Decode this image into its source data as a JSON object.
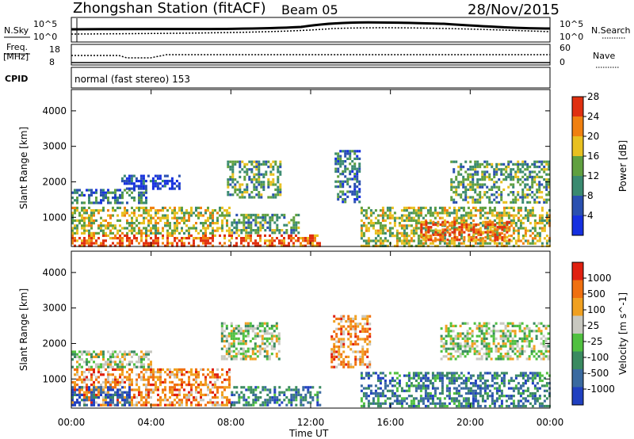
{
  "header": {
    "station": "Zhongshan Station (fitACF)",
    "beam": "Beam 05",
    "date": "28/Nov/2015"
  },
  "summary_panels": {
    "nsky_label": "N.Sky",
    "nsearch_label": "N.Search",
    "freq_label_1": "Freq.",
    "freq_label_2": "[MHz]",
    "nave_label": "Nave",
    "cpid_label": "CPID",
    "nsky_ticks": [
      "10^5",
      "10^0"
    ],
    "nsearch_ticks": [
      "10^5",
      "10^0"
    ],
    "freq_ticks": [
      "18",
      "8"
    ],
    "nave_ticks": [
      "60",
      "0"
    ],
    "cpid_text": "normal (fast stereo) 153"
  },
  "chart_data": [
    {
      "type": "heatmap",
      "quantity": "Power",
      "ylabel": "Slant Range [km]",
      "xlabel": "Time UT",
      "colorbar_label": "Power [dB]",
      "colorbar_ticks": [
        "4",
        "8",
        "12",
        "16",
        "20",
        "24",
        "28"
      ],
      "colors": [
        "#1530e0",
        "#2a50b0",
        "#3a8a70",
        "#60a040",
        "#e8c020",
        "#f08010",
        "#e03010"
      ],
      "x_ticks": [
        "00:00",
        "04:00",
        "08:00",
        "12:00",
        "16:00",
        "20:00",
        "00:00"
      ],
      "y_ticks": [
        "1000",
        "2000",
        "3000",
        "4000"
      ],
      "x_range_hours": [
        0,
        24
      ],
      "y_range_km": [
        180,
        4600
      ],
      "echo_regions": [
        {
          "t0": 0.0,
          "t1": 3.8,
          "r0": 1350,
          "r1": 1800,
          "level": 2
        },
        {
          "t0": 0.0,
          "t1": 12.5,
          "r0": 180,
          "r1": 520,
          "level": 6
        },
        {
          "t0": 0.0,
          "t1": 8.0,
          "r0": 500,
          "r1": 1300,
          "level": 4
        },
        {
          "t0": 8.0,
          "t1": 11.5,
          "r0": 500,
          "r1": 1100,
          "level": 3
        },
        {
          "t0": 2.5,
          "t1": 5.5,
          "r0": 1800,
          "r1": 2200,
          "level": 1
        },
        {
          "t0": 7.8,
          "t1": 10.5,
          "r0": 1500,
          "r1": 2600,
          "level": 3
        },
        {
          "t0": 13.2,
          "t1": 14.5,
          "r0": 1400,
          "r1": 2900,
          "level": 2
        },
        {
          "t0": 14.5,
          "t1": 24.0,
          "r0": 180,
          "r1": 1300,
          "level": 4
        },
        {
          "t0": 17.5,
          "t1": 22.0,
          "r0": 300,
          "r1": 900,
          "level": 6
        },
        {
          "t0": 19.0,
          "t1": 24.0,
          "r0": 1400,
          "r1": 2600,
          "level": 3
        }
      ]
    },
    {
      "type": "heatmap",
      "quantity": "Velocity",
      "ylabel": "Slant Range [km]",
      "xlabel": "Time UT",
      "colorbar_label": "Velocity [m s^-1]",
      "colorbar_ticks": [
        "1000",
        "500",
        "100",
        "25",
        "-25",
        "-100",
        "-500",
        "-1000"
      ],
      "colors": [
        "#2040c0",
        "#3a6aa0",
        "#3a8a60",
        "#50c040",
        "#c8c8c0",
        "#f0a020",
        "#f07010",
        "#e02010"
      ],
      "x_ticks": [
        "00:00",
        "04:00",
        "08:00",
        "12:00",
        "16:00",
        "20:00",
        "00:00"
      ],
      "y_ticks": [
        "1000",
        "2000",
        "3000",
        "4000"
      ],
      "x_range_hours": [
        0,
        24
      ],
      "y_range_km": [
        180,
        4600
      ],
      "echo_regions": [
        {
          "t0": 0.0,
          "t1": 4.0,
          "r0": 1300,
          "r1": 1800,
          "level": 4
        },
        {
          "t0": 0.0,
          "t1": 8.0,
          "r0": 200,
          "r1": 1300,
          "level": 6
        },
        {
          "t0": 0.0,
          "t1": 3.0,
          "r0": 200,
          "r1": 800,
          "level": 1
        },
        {
          "t0": 7.5,
          "t1": 10.5,
          "r0": 1500,
          "r1": 2600,
          "level": 4
        },
        {
          "t0": 8.0,
          "t1": 12.5,
          "r0": 200,
          "r1": 800,
          "level": 2
        },
        {
          "t0": 13.0,
          "t1": 15.0,
          "r0": 1300,
          "r1": 2800,
          "level": 6
        },
        {
          "t0": 14.5,
          "t1": 24.0,
          "r0": 200,
          "r1": 1200,
          "level": 2
        },
        {
          "t0": 18.5,
          "t1": 24.0,
          "r0": 1500,
          "r1": 2600,
          "level": 4
        }
      ]
    }
  ]
}
